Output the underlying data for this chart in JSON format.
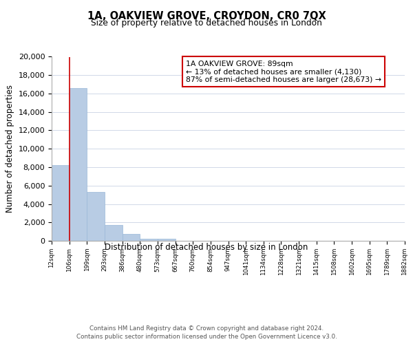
{
  "title": "1A, OAKVIEW GROVE, CROYDON, CR0 7QX",
  "subtitle": "Size of property relative to detached houses in London",
  "xlabel": "Distribution of detached houses by size in London",
  "ylabel": "Number of detached properties",
  "bar_values": [
    8200,
    16600,
    5300,
    1750,
    750,
    250,
    250,
    0,
    0,
    0,
    0,
    0,
    0,
    0,
    0,
    0,
    0,
    0,
    0,
    0
  ],
  "categories": [
    "12sqm",
    "106sqm",
    "199sqm",
    "293sqm",
    "386sqm",
    "480sqm",
    "573sqm",
    "667sqm",
    "760sqm",
    "854sqm",
    "947sqm",
    "1041sqm",
    "1134sqm",
    "1228sqm",
    "1321sqm",
    "1415sqm",
    "1508sqm",
    "1602sqm",
    "1695sqm",
    "1789sqm",
    "1882sqm"
  ],
  "bar_color": "#b8cce4",
  "bar_edge_color": "#9ab8d8",
  "annotation_box_text": "1A OAKVIEW GROVE: 89sqm\n← 13% of detached houses are smaller (4,130)\n87% of semi-detached houses are larger (28,673) →",
  "annotation_box_edge_color": "#cc0000",
  "annotation_box_face_color": "#ffffff",
  "vline_color": "#cc0000",
  "ylim": [
    0,
    20000
  ],
  "yticks": [
    0,
    2000,
    4000,
    6000,
    8000,
    10000,
    12000,
    14000,
    16000,
    18000,
    20000
  ],
  "background_color": "#ffffff",
  "grid_color": "#d0d8e8",
  "footer_line1": "Contains HM Land Registry data © Crown copyright and database right 2024.",
  "footer_line2": "Contains public sector information licensed under the Open Government Licence v3.0."
}
